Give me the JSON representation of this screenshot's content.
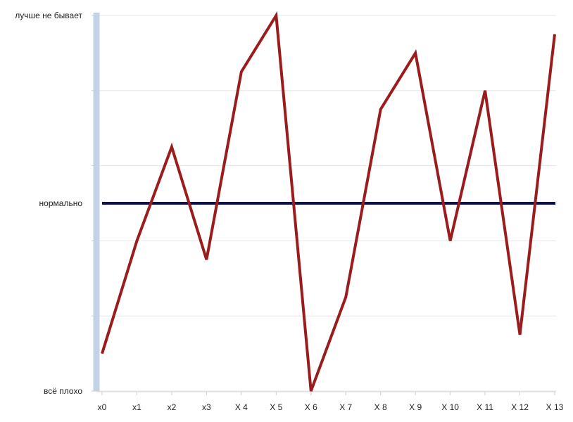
{
  "chart_data": {
    "type": "line",
    "title": "",
    "xlabel": "",
    "ylabel": "",
    "categories": [
      "x0",
      "x1",
      "x2",
      "x3",
      "X 4",
      "X 5",
      "X 6",
      "X 7",
      "X 8",
      "X 9",
      "X 10",
      "X 11",
      "X 12",
      "X 13"
    ],
    "y_tick_labels": [
      {
        "value": 0,
        "label": "всё плохо"
      },
      {
        "value": 50,
        "label": "нормально"
      },
      {
        "value": 100,
        "label": "лучше не бывает"
      }
    ],
    "ylim": [
      0,
      100
    ],
    "grid_y": [
      0,
      20,
      40,
      60,
      80,
      100
    ],
    "grid": true,
    "legend": "none",
    "series": [
      {
        "values": [
          10,
          40,
          65,
          35,
          85,
          100,
          0,
          25,
          75,
          90,
          40,
          80,
          15,
          95
        ],
        "color": "#9b1c1c"
      }
    ],
    "reference_lines": [
      {
        "value": 50,
        "color": "#0b1050"
      }
    ],
    "axis_color": "#c3d3e6",
    "grid_color": "#e6e6e6"
  }
}
